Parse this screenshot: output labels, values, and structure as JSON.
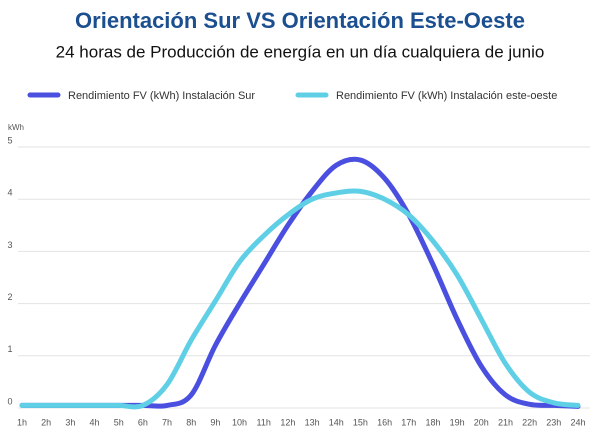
{
  "chart_data": {
    "type": "line",
    "title": "Orientación Sur VS Orientación Este-Oeste",
    "subtitle": "24 horas de Producción de energía en un día cualquiera de junio",
    "y_label": "kWh",
    "categories": [
      "1h",
      "2h",
      "3h",
      "4h",
      "5h",
      "6h",
      "7h",
      "8h",
      "9h",
      "10h",
      "11h",
      "12h",
      "13h",
      "14h",
      "15h",
      "16h",
      "17h",
      "18h",
      "19h",
      "20h",
      "21h",
      "22h",
      "23h",
      "24h"
    ],
    "series": [
      {
        "name": "Rendimiento FV (kWh) Instalación Sur",
        "color": "#4a4fe0",
        "values": [
          0.05,
          0.05,
          0.05,
          0.05,
          0.05,
          0.05,
          0.05,
          0.25,
          1.2,
          2.0,
          2.75,
          3.5,
          4.15,
          4.65,
          4.75,
          4.4,
          3.7,
          2.75,
          1.7,
          0.8,
          0.25,
          0.07,
          0.05,
          0.03
        ]
      },
      {
        "name": "Rendimiento FV (kWh) Instalación este-oeste",
        "color": "#5fcfe6",
        "values": [
          0.05,
          0.05,
          0.05,
          0.05,
          0.05,
          0.05,
          0.45,
          1.3,
          2.05,
          2.8,
          3.3,
          3.7,
          4.0,
          4.12,
          4.15,
          4.0,
          3.7,
          3.2,
          2.55,
          1.7,
          0.85,
          0.3,
          0.1,
          0.05
        ]
      }
    ],
    "ylim": [
      0,
      5
    ],
    "yticks": [
      0,
      1,
      2,
      3,
      4,
      5
    ],
    "grid": true
  }
}
